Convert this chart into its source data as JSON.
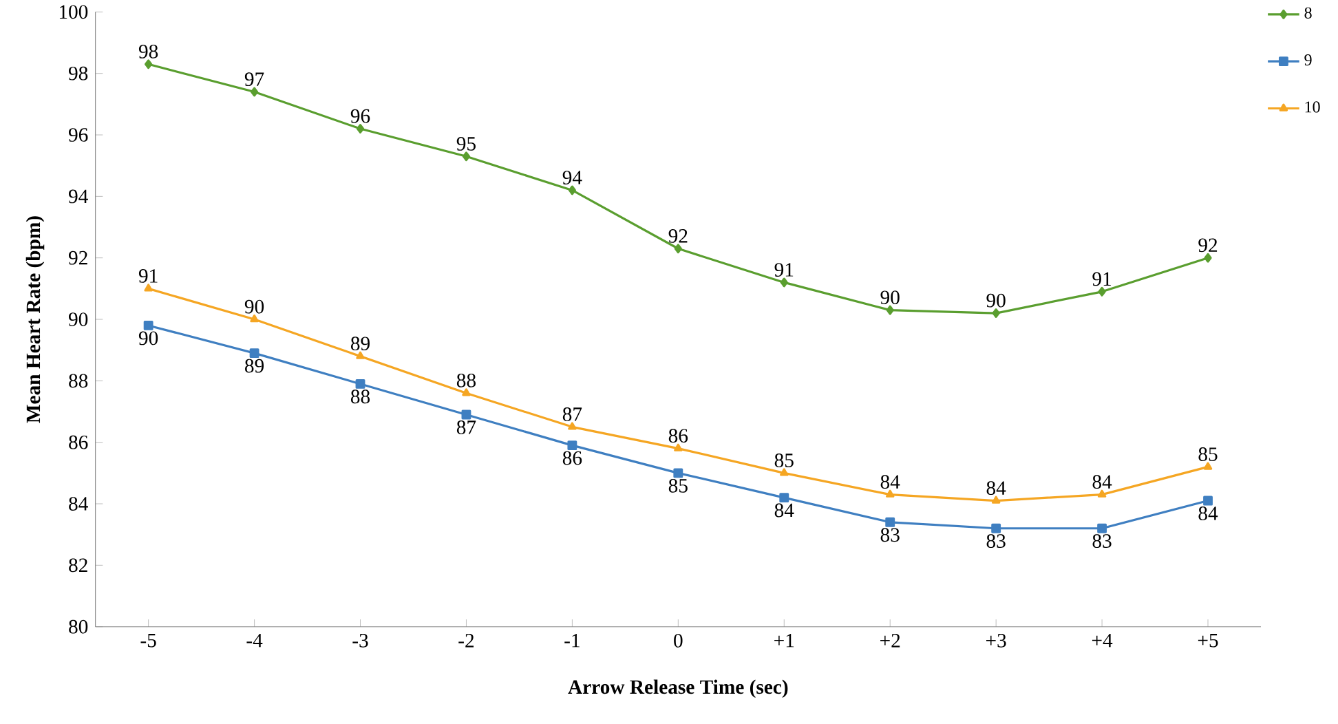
{
  "chart_data": {
    "type": "line",
    "xlabel": "Arrow Release Time (sec)",
    "ylabel": "Mean Heart Rate (bpm)",
    "categories": [
      "-5",
      "-4",
      "-3",
      "-2",
      "-1",
      "0",
      "+1",
      "+2",
      "+3",
      "+4",
      "+5"
    ],
    "ylim": [
      80,
      100
    ],
    "yticks": [
      80,
      82,
      84,
      86,
      88,
      90,
      92,
      94,
      96,
      98,
      100
    ],
    "grid": false,
    "legend": "top right",
    "series": [
      {
        "name": "8",
        "color": "#5a9e2f",
        "marker": "diamond",
        "values": [
          98.3,
          97.4,
          96.2,
          95.3,
          94.2,
          92.3,
          91.2,
          90.3,
          90.2,
          90.9,
          92.0
        ],
        "value_labels": [
          "98",
          "97",
          "96",
          "95",
          "94",
          "92",
          "91",
          "90",
          "90",
          "91",
          "92"
        ]
      },
      {
        "name": "9",
        "color": "#3f7fc1",
        "marker": "square",
        "values": [
          89.8,
          88.9,
          87.9,
          86.9,
          85.9,
          85.0,
          84.2,
          83.4,
          83.2,
          83.2,
          84.1
        ],
        "value_labels": [
          "90",
          "89",
          "88",
          "87",
          "86",
          "85",
          "84",
          "83",
          "83",
          "83",
          "84"
        ]
      },
      {
        "name": "10",
        "color": "#f5a623",
        "marker": "triangle",
        "values": [
          91.0,
          90.0,
          88.8,
          87.6,
          86.5,
          85.8,
          85.0,
          84.3,
          84.1,
          84.3,
          85.2
        ],
        "value_labels": [
          "91",
          "90",
          "89",
          "88",
          "87",
          "86",
          "85",
          "84",
          "84",
          "84",
          "85"
        ]
      }
    ]
  }
}
